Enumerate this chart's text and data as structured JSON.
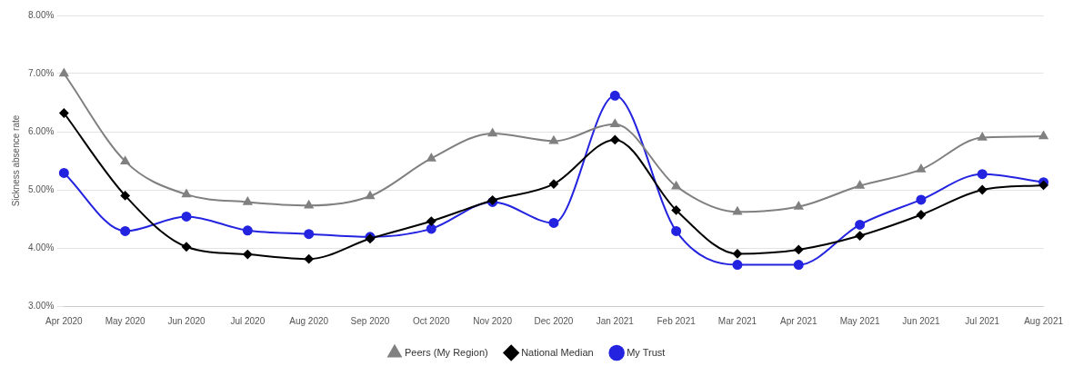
{
  "chart_data": {
    "type": "line",
    "ylabel": "Sickness absence rate",
    "categories": [
      "Apr 2020",
      "May 2020",
      "Jun 2020",
      "Jul 2020",
      "Aug 2020",
      "Sep 2020",
      "Oct 2020",
      "Nov 2020",
      "Dec 2020",
      "Jan 2021",
      "Feb 2021",
      "Mar 2021",
      "Apr 2021",
      "May 2021",
      "Jun 2021",
      "Jul 2021",
      "Aug 2021"
    ],
    "series": [
      {
        "name": "My Trust",
        "color": "#2323e0",
        "marker": "circle",
        "values": [
          5.29,
          4.29,
          4.54,
          4.3,
          4.24,
          4.19,
          4.33,
          4.79,
          4.43,
          6.62,
          4.29,
          3.71,
          3.71,
          4.4,
          4.83,
          5.27,
          5.13
        ]
      },
      {
        "name": "National Median",
        "color": "#000000",
        "marker": "diamond",
        "values": [
          6.32,
          4.9,
          4.02,
          3.89,
          3.81,
          4.16,
          4.46,
          4.82,
          5.1,
          5.86,
          4.65,
          3.9,
          3.97,
          4.21,
          4.57,
          5.0,
          5.08
        ]
      },
      {
        "name": "Peers (My Region)",
        "color": "#808080",
        "marker": "triangle",
        "values": [
          7.0,
          5.49,
          4.92,
          4.79,
          4.73,
          4.89,
          5.54,
          5.97,
          5.84,
          6.13,
          5.06,
          4.62,
          4.71,
          5.07,
          5.35,
          5.9,
          5.92
        ]
      }
    ],
    "ylim": [
      3,
      8
    ],
    "yticks": [
      {
        "value": 3,
        "label": "3.00%"
      },
      {
        "value": 4,
        "label": "4.00%"
      },
      {
        "value": 5,
        "label": "5.00%"
      },
      {
        "value": 6,
        "label": "6.00%"
      },
      {
        "value": 7,
        "label": "7.00%"
      },
      {
        "value": 8,
        "label": "8.00%"
      }
    ],
    "grid": "y",
    "legend": "bottom",
    "line_style": "solid"
  }
}
